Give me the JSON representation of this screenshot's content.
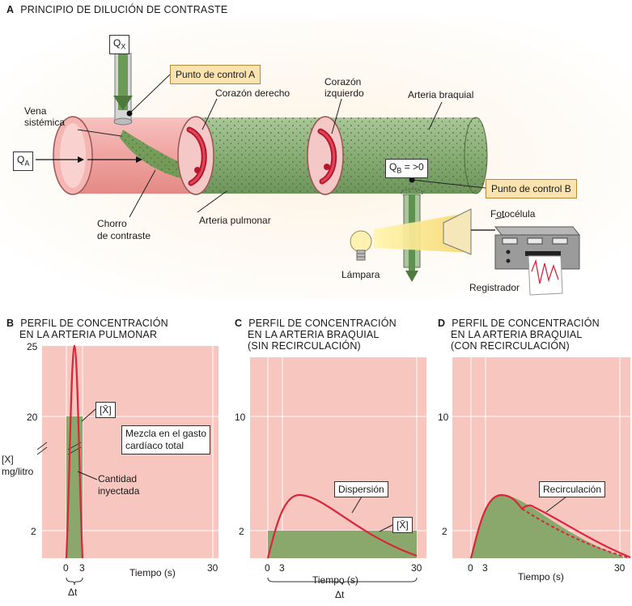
{
  "panel_a": {
    "letter": "A",
    "title": "PRINCIPIO DE DILUCIÓN DE CONTRASTE",
    "qx": "Q",
    "qx_sub": "X",
    "qa": "Q",
    "qa_sub": "A",
    "qb": "Q",
    "qb_sub": "B",
    "qb_suffix": "= >0",
    "punto_a": "Punto de control A",
    "punto_b": "Punto de control B",
    "vena_1": "Vena",
    "vena_2": "sistémica",
    "corazon_derecho": "Corazón derecho",
    "corazon_izq_1": "Corazón",
    "corazon_izq_2": "izquierdo",
    "arteria_braquial": "Arteria braquial",
    "chorro_1": "Chorro",
    "chorro_2": "de contraste",
    "arteria_pulmonar": "Arteria pulmonar",
    "fotocelula": "Fotocélula",
    "lampara": "Lámpara",
    "registrador": "Registrador"
  },
  "panel_b": {
    "letter": "B",
    "title_1": "PERFIL DE CONCENTRACIÓN",
    "title_2": "EN LA ARTERIA PULMONAR",
    "ylabel_1": "[X]",
    "ylabel_2": "mg/litro",
    "ticks_y": [
      "25",
      "20",
      "2"
    ],
    "ticks_x": [
      "0",
      "3",
      "30"
    ],
    "xlabel": "Tiempo (s)",
    "delta": "Δt",
    "xbar": "[X̄]",
    "mezcla_1": "Mezcla en el gasto",
    "mezcla_2": "cardíaco total",
    "cantidad_1": "Cantidad",
    "cantidad_2": "inyectada"
  },
  "panel_c": {
    "letter": "C",
    "title_1": "PERFIL DE CONCENTRACIÓN",
    "title_2": "EN LA ARTERIA BRAQUIAL",
    "title_3": "(SIN RECIRCULACIÓN)",
    "ticks_y": [
      "10",
      "2"
    ],
    "ticks_x": [
      "0",
      "3",
      "30"
    ],
    "xlabel": "Tiempo (s)",
    "delta": "Δt",
    "dispersion": "Dispersión",
    "xbar": "[X̄]"
  },
  "panel_d": {
    "letter": "D",
    "title_1": "PERFIL DE CONCENTRACIÓN",
    "title_2": "EN LA ARTERIA BRAQUIAL",
    "title_3": "(CON RECIRCULACIÓN)",
    "ticks_y": [
      "10",
      "2"
    ],
    "ticks_x": [
      "0",
      "3",
      "30"
    ],
    "xlabel": "Tiempo (s)",
    "recirculacion": "Recirculación"
  },
  "colors": {
    "plot_bg": "#f7c6be",
    "curve": "#d8263a",
    "fill_green": "#8aa86c",
    "label_box": "#fbe3b0",
    "vessel_green": "#8cb07a",
    "vessel_pink": "#f2a8a6"
  }
}
